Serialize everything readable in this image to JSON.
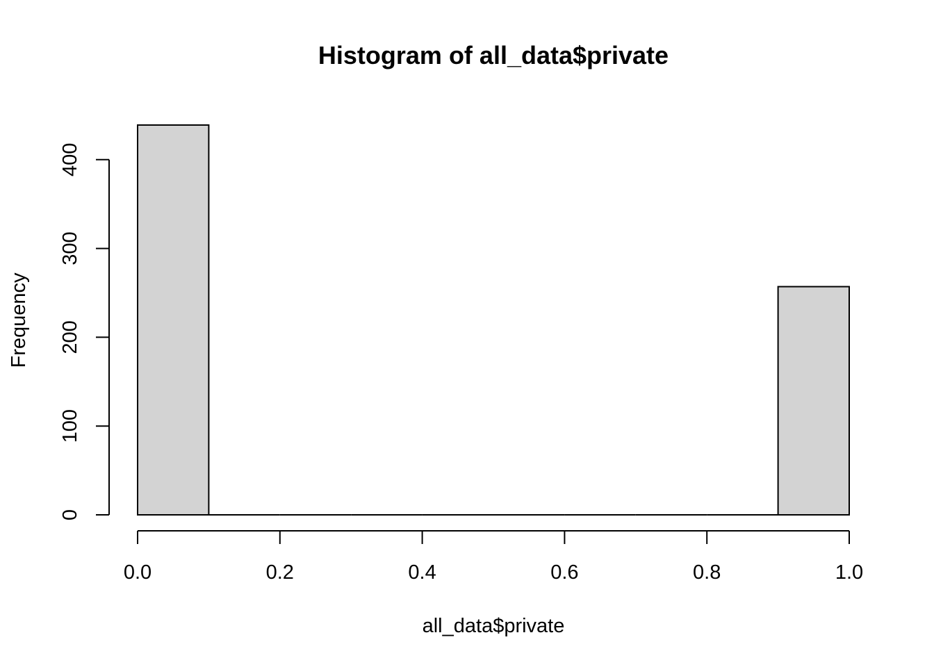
{
  "chart_data": {
    "type": "bar",
    "title": "Histogram of all_data$private",
    "xlabel": "all_data$private",
    "ylabel": "Frequency",
    "bins": [
      {
        "start": 0.0,
        "end": 0.1,
        "count": 439
      },
      {
        "start": 0.1,
        "end": 0.2,
        "count": 0
      },
      {
        "start": 0.2,
        "end": 0.3,
        "count": 0
      },
      {
        "start": 0.3,
        "end": 0.4,
        "count": 0
      },
      {
        "start": 0.4,
        "end": 0.5,
        "count": 0
      },
      {
        "start": 0.5,
        "end": 0.6,
        "count": 0
      },
      {
        "start": 0.6,
        "end": 0.7,
        "count": 0
      },
      {
        "start": 0.7,
        "end": 0.8,
        "count": 0
      },
      {
        "start": 0.8,
        "end": 0.9,
        "count": 0
      },
      {
        "start": 0.9,
        "end": 1.0,
        "count": 257
      }
    ],
    "xlim": [
      0.0,
      1.0
    ],
    "ylim": [
      0,
      439
    ],
    "x_ticks": [
      "0.0",
      "0.2",
      "0.4",
      "0.6",
      "0.8",
      "1.0"
    ],
    "y_ticks": [
      "0",
      "100",
      "200",
      "300",
      "400"
    ],
    "grid": false,
    "bar_color": "#d3d3d3",
    "edge_color": "#000000"
  }
}
